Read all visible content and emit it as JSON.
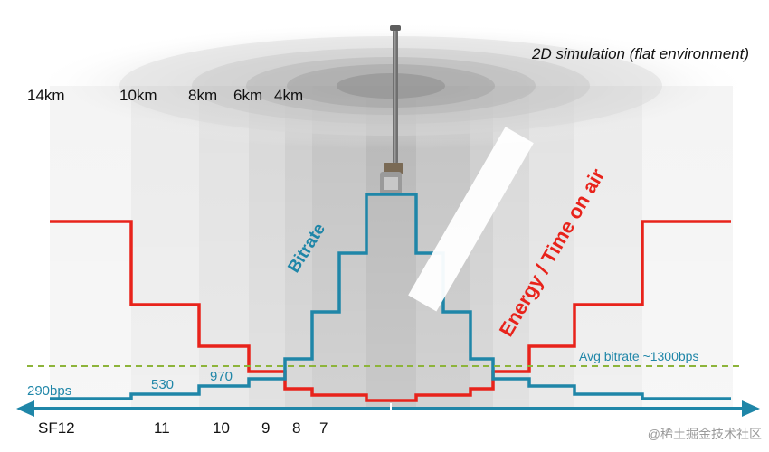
{
  "title": "2D simulation (flat environment)",
  "distance_labels": [
    "14km",
    "10km",
    "8km",
    "6km",
    "4km"
  ],
  "spreading_factors": [
    "SF12",
    "11",
    "10",
    "9",
    "8",
    "7"
  ],
  "bitrate_labels": [
    "290bps",
    "530",
    "970"
  ],
  "curve_labels": {
    "bitrate": "Bitrate",
    "energy": "Energy / Time on air"
  },
  "avg_bitrate_label": "Avg bitrate ~1300bps",
  "watermark": "@稀土掘金技术社区",
  "colors": {
    "bitrate": "#1f86a8",
    "energy": "#e8231b",
    "avg_line": "#8db43a",
    "axis": "#1f86a8"
  },
  "icons": {
    "antenna": "antenna-icon",
    "axis_arrows": "double-arrow-icon"
  }
}
